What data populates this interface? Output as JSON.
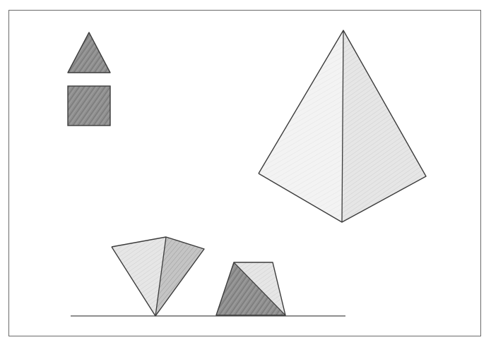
{
  "figure": {
    "shapes": [
      "triangle",
      "square",
      "pyramid",
      "pyramid-inverted",
      "pyramid-frustum-side-view"
    ],
    "colors": {
      "frame": "#6a6a6a",
      "outline": "#3c3c3c",
      "shade_dark": "#8f8f8f",
      "shade_mid": "#b9b9b9",
      "shade_light": "#dcdcdc",
      "shade_very_light": "#ededed",
      "ground_line": "#4a4a4a"
    }
  }
}
